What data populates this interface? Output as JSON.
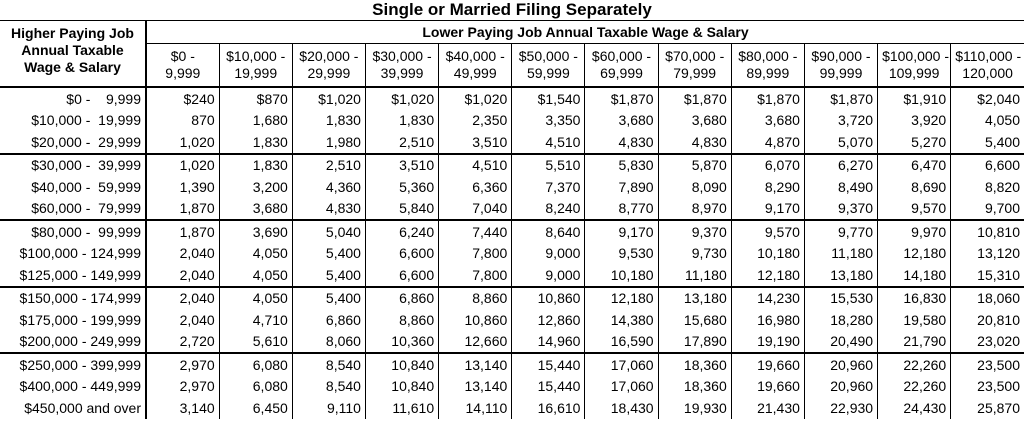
{
  "title": "Single or Married Filing Separately",
  "table": {
    "corner_header": [
      "Higher Paying Job",
      "Annual Taxable",
      "Wage & Salary"
    ],
    "group_header": "Lower Paying Job Annual Taxable Wage & Salary",
    "columns": [
      [
        "$0 -",
        "9,999"
      ],
      [
        "$10,000 -",
        "19,999"
      ],
      [
        "$20,000 -",
        "29,999"
      ],
      [
        "$30,000 -",
        "39,999"
      ],
      [
        "$40,000 -",
        "49,999"
      ],
      [
        "$50,000 -",
        "59,999"
      ],
      [
        "$60,000 -",
        "69,999"
      ],
      [
        "$70,000 -",
        "79,999"
      ],
      [
        "$80,000 -",
        "89,999"
      ],
      [
        "$90,000 -",
        "99,999"
      ],
      [
        "$100,000 -",
        "109,999"
      ],
      [
        "$110,000 -",
        "120,000"
      ]
    ],
    "row_labels": [
      "$0 -    9,999",
      "$10,000 -  19,999",
      "$20,000 -  29,999",
      "$30,000 -  39,999",
      "$40,000 -  59,999",
      "$60,000 -  79,999",
      "$80,000 -  99,999",
      "$100,000 - 124,999",
      "$125,000 - 149,999",
      "$150,000 - 174,999",
      "$175,000 - 199,999",
      "$200,000 - 249,999",
      "$250,000 - 399,999",
      "$400,000 - 449,999",
      "$450,000 and over"
    ],
    "rows": [
      [
        "$240",
        "$870",
        "$1,020",
        "$1,020",
        "$1,020",
        "$1,540",
        "$1,870",
        "$1,870",
        "$1,870",
        "$1,870",
        "$1,910",
        "$2,040"
      ],
      [
        "870",
        "1,680",
        "1,830",
        "1,830",
        "2,350",
        "3,350",
        "3,680",
        "3,680",
        "3,680",
        "3,720",
        "3,920",
        "4,050"
      ],
      [
        "1,020",
        "1,830",
        "1,980",
        "2,510",
        "3,510",
        "4,510",
        "4,830",
        "4,830",
        "4,870",
        "5,070",
        "5,270",
        "5,400"
      ],
      [
        "1,020",
        "1,830",
        "2,510",
        "3,510",
        "4,510",
        "5,510",
        "5,830",
        "5,870",
        "6,070",
        "6,270",
        "6,470",
        "6,600"
      ],
      [
        "1,390",
        "3,200",
        "4,360",
        "5,360",
        "6,360",
        "7,370",
        "7,890",
        "8,090",
        "8,290",
        "8,490",
        "8,690",
        "8,820"
      ],
      [
        "1,870",
        "3,680",
        "4,830",
        "5,840",
        "7,040",
        "8,240",
        "8,770",
        "8,970",
        "9,170",
        "9,370",
        "9,570",
        "9,700"
      ],
      [
        "1,870",
        "3,690",
        "5,040",
        "6,240",
        "7,440",
        "8,640",
        "9,170",
        "9,370",
        "9,570",
        "9,770",
        "9,970",
        "10,810"
      ],
      [
        "2,040",
        "4,050",
        "5,400",
        "6,600",
        "7,800",
        "9,000",
        "9,530",
        "9,730",
        "10,180",
        "11,180",
        "12,180",
        "13,120"
      ],
      [
        "2,040",
        "4,050",
        "5,400",
        "6,600",
        "7,800",
        "9,000",
        "10,180",
        "11,180",
        "12,180",
        "13,180",
        "14,180",
        "15,310"
      ],
      [
        "2,040",
        "4,050",
        "5,400",
        "6,860",
        "8,860",
        "10,860",
        "12,180",
        "13,180",
        "14,230",
        "15,530",
        "16,830",
        "18,060"
      ],
      [
        "2,040",
        "4,710",
        "6,860",
        "8,860",
        "10,860",
        "12,860",
        "14,380",
        "15,680",
        "16,980",
        "18,280",
        "19,580",
        "20,810"
      ],
      [
        "2,720",
        "5,610",
        "8,060",
        "10,360",
        "12,660",
        "14,960",
        "16,590",
        "17,890",
        "19,190",
        "20,490",
        "21,790",
        "23,020"
      ],
      [
        "2,970",
        "6,080",
        "8,540",
        "10,840",
        "13,140",
        "15,440",
        "17,060",
        "18,360",
        "19,660",
        "20,960",
        "22,260",
        "23,500"
      ],
      [
        "2,970",
        "6,080",
        "8,540",
        "10,840",
        "13,140",
        "15,440",
        "17,060",
        "18,360",
        "19,660",
        "20,960",
        "22,260",
        "23,500"
      ],
      [
        "3,140",
        "6,450",
        "9,110",
        "11,610",
        "14,110",
        "16,610",
        "18,430",
        "19,930",
        "21,430",
        "22,930",
        "24,430",
        "25,870"
      ]
    ]
  }
}
